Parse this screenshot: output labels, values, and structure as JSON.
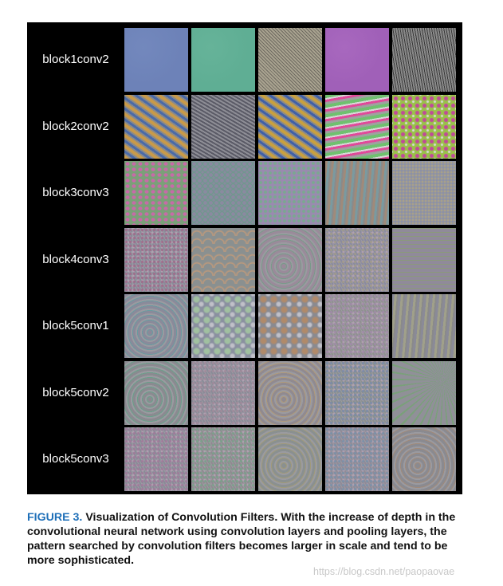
{
  "figure": {
    "rows": [
      {
        "label": "block1conv2",
        "tiles": [
          {
            "base": "#6d82b8",
            "accent": "#8aa0d0",
            "pattern": "flat"
          },
          {
            "base": "#5fae94",
            "accent": "#82c8ad",
            "pattern": "flat"
          },
          {
            "base": "#a9a390",
            "accent": "#6e6a60",
            "pattern": "fine-diagonal"
          },
          {
            "base": "#a060b8",
            "accent": "#c888d8",
            "pattern": "flat"
          },
          {
            "base": "#8a8a8a",
            "accent": "#3a3a3a",
            "pattern": "fine-vertical"
          }
        ]
      },
      {
        "label": "block2conv2",
        "tiles": [
          {
            "base": "#c89a4a",
            "accent": "#4a6aa8",
            "pattern": "stripes-diagonal"
          },
          {
            "base": "#8e8e96",
            "accent": "#5a5a66",
            "pattern": "stripes-diagonal-fine"
          },
          {
            "base": "#c8a040",
            "accent": "#4060a8",
            "pattern": "stripes-diagonal"
          },
          {
            "base": "#6fc06f",
            "accent": "#e04a9a",
            "pattern": "stripes-horizontal"
          },
          {
            "base": "#9ac04a",
            "accent": "#c04a9a",
            "pattern": "blobs"
          }
        ]
      },
      {
        "label": "block3conv3",
        "tiles": [
          {
            "base": "#7aa078",
            "accent": "#c86aa8",
            "pattern": "blobs-small"
          },
          {
            "base": "#8a8aa0",
            "accent": "#6a9a8a",
            "pattern": "cells"
          },
          {
            "base": "#9a8ab0",
            "accent": "#7aa890",
            "pattern": "dots"
          },
          {
            "base": "#a08a7a",
            "accent": "#7a9aa0",
            "pattern": "stripes-vertical"
          },
          {
            "base": "#8a90a8",
            "accent": "#a8a08a",
            "pattern": "dots-fine"
          }
        ]
      },
      {
        "label": "block4conv3",
        "tiles": [
          {
            "base": "#8a8a9a",
            "accent": "#a06a8a",
            "pattern": "noise"
          },
          {
            "base": "#8a9090",
            "accent": "#c09a7a",
            "pattern": "scales"
          },
          {
            "base": "#9a8a9a",
            "accent": "#7a9a8a",
            "pattern": "swirl"
          },
          {
            "base": "#8a8aa0",
            "accent": "#a09a8a",
            "pattern": "noise"
          },
          {
            "base": "#908a9a",
            "accent": "#8a9a7a",
            "pattern": "grid"
          }
        ]
      },
      {
        "label": "block5conv1",
        "tiles": [
          {
            "base": "#8a8a9a",
            "accent": "#6a9aa0",
            "pattern": "swirl"
          },
          {
            "base": "#8a90a0",
            "accent": "#a0c0a0",
            "pattern": "bubbles"
          },
          {
            "base": "#8a8a90",
            "accent": "#b08a6a",
            "pattern": "bubbles"
          },
          {
            "base": "#909090",
            "accent": "#a08aa8",
            "pattern": "noise"
          },
          {
            "base": "#8a8a98",
            "accent": "#a0a08a",
            "pattern": "stripes-vertical"
          }
        ]
      },
      {
        "label": "block5conv2",
        "tiles": [
          {
            "base": "#8a8a90",
            "accent": "#6aa08a",
            "pattern": "swirl"
          },
          {
            "base": "#8a8a98",
            "accent": "#a08a9a",
            "pattern": "noise"
          },
          {
            "base": "#908a90",
            "accent": "#b09a7a",
            "pattern": "swirl"
          },
          {
            "base": "#8a9090",
            "accent": "#7a8aa8",
            "pattern": "noise"
          },
          {
            "base": "#909098",
            "accent": "#7aa07a",
            "pattern": "radial"
          }
        ]
      },
      {
        "label": "block5conv3",
        "tiles": [
          {
            "base": "#8a8a98",
            "accent": "#a07a9a",
            "pattern": "noise"
          },
          {
            "base": "#908a90",
            "accent": "#7aa08a",
            "pattern": "noise"
          },
          {
            "base": "#8a9090",
            "accent": "#a09a7a",
            "pattern": "swirl"
          },
          {
            "base": "#908a98",
            "accent": "#7a90a8",
            "pattern": "noise"
          },
          {
            "base": "#8a8a90",
            "accent": "#a08a7a",
            "pattern": "swirl"
          }
        ]
      }
    ]
  },
  "caption": {
    "figure_number": "FIGURE 3.",
    "text": "Visualization of Convolution Filters. With the increase of depth in the convolutional neural network using convolution layers and pooling layers, the pattern searched by convolution filters becomes larger in scale and tend to be more sophisticated."
  },
  "watermark": "https://blog.csdn.net/paopaovae"
}
